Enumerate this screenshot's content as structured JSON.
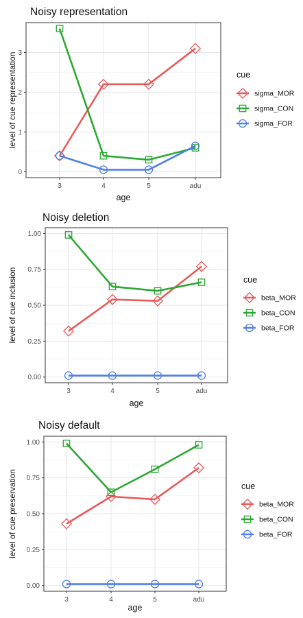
{
  "colors": {
    "MOR": "#e8595a",
    "CON": "#2aa832",
    "FOR": "#4f7fe8",
    "panel_border": "#333333",
    "grid": "#e6e6e6"
  },
  "chart_data": [
    {
      "type": "line",
      "title": "Noisy representation",
      "xlabel": "age",
      "ylabel": "level of cue representation",
      "categories": [
        "3",
        "4",
        "5",
        "adu"
      ],
      "ylim": [
        -0.15,
        3.75
      ],
      "yticks": [
        0,
        1,
        2,
        3
      ],
      "ytick_labels": [
        "0",
        "1",
        "2",
        "3"
      ],
      "grid": true,
      "legend_title": "cue",
      "legend_position": "right",
      "series": [
        {
          "name": "sigma_MOR",
          "key": "MOR",
          "marker": "diamond",
          "values": [
            0.4,
            2.2,
            2.2,
            3.1
          ]
        },
        {
          "name": "sigma_CON",
          "key": "CON",
          "marker": "square",
          "values": [
            3.6,
            0.4,
            0.3,
            0.6
          ]
        },
        {
          "name": "sigma_FOR",
          "key": "FOR",
          "marker": "circle",
          "values": [
            0.4,
            0.05,
            0.05,
            0.65
          ]
        }
      ]
    },
    {
      "type": "line",
      "title": "Noisy deletion",
      "xlabel": "age",
      "ylabel": "level of cue inclusion",
      "categories": [
        "3",
        "4",
        "5",
        "adu"
      ],
      "ylim": [
        -0.04,
        1.04
      ],
      "yticks": [
        0,
        0.25,
        0.5,
        0.75,
        1
      ],
      "ytick_labels": [
        "0.00",
        "0.25",
        "0.50",
        "0.75",
        "1.00"
      ],
      "grid": true,
      "legend_title": "cue",
      "legend_position": "right",
      "series": [
        {
          "name": "beta_MOR",
          "key": "MOR",
          "marker": "diamond",
          "values": [
            0.32,
            0.54,
            0.53,
            0.77
          ]
        },
        {
          "name": "beta_CON",
          "key": "CON",
          "marker": "square",
          "values": [
            0.99,
            0.63,
            0.6,
            0.66
          ]
        },
        {
          "name": "beta_FOR",
          "key": "FOR",
          "marker": "circle",
          "values": [
            0.01,
            0.01,
            0.01,
            0.01
          ]
        }
      ]
    },
    {
      "type": "line",
      "title": "Noisy default",
      "xlabel": "age",
      "ylabel": "level of cue preservation",
      "categories": [
        "3",
        "4",
        "5",
        "adu"
      ],
      "ylim": [
        -0.04,
        1.04
      ],
      "yticks": [
        0,
        0.25,
        0.5,
        0.75,
        1
      ],
      "ytick_labels": [
        "0.00",
        "0.25",
        "0.50",
        "0.75",
        "1.00"
      ],
      "grid": true,
      "legend_title": "cue",
      "legend_position": "right",
      "series": [
        {
          "name": "beta_MOR",
          "key": "MOR",
          "marker": "diamond",
          "values": [
            0.43,
            0.62,
            0.6,
            0.82
          ]
        },
        {
          "name": "beta_CON",
          "key": "CON",
          "marker": "square",
          "values": [
            0.99,
            0.65,
            0.81,
            0.98
          ]
        },
        {
          "name": "beta_FOR",
          "key": "FOR",
          "marker": "circle",
          "values": [
            0.01,
            0.01,
            0.01,
            0.01
          ]
        }
      ]
    }
  ]
}
